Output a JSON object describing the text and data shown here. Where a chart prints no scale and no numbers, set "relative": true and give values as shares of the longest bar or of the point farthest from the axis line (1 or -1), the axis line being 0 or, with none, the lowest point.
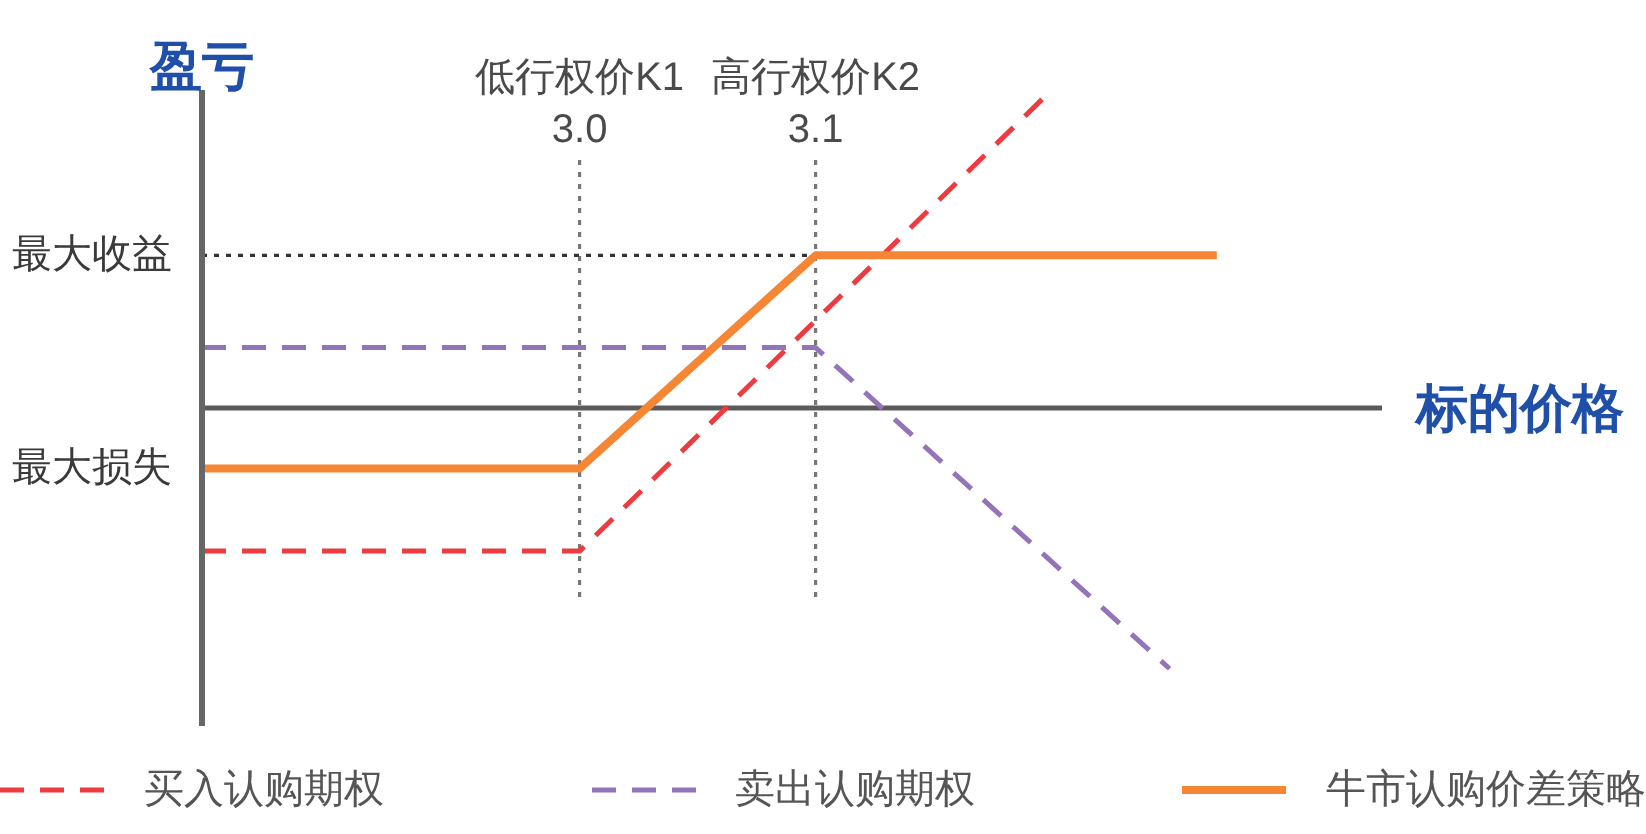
{
  "chart_data": {
    "type": "line",
    "relative": true,
    "xlabel": "标的价格",
    "ylabel": "盈亏",
    "xlim": [
      2.84,
      3.34
    ],
    "xticks": [
      {
        "value": 3,
        "label": "3.0"
      },
      3.1
    ],
    "series": [
      {
        "name": "买入认购期权",
        "color": "#ee3b40",
        "line_style": "dashed",
        "x": [
          2.84,
          3,
          3.2
        ],
        "values": [
          -0.45,
          -0.45,
          1
        ]
      },
      {
        "name": "卖出认购期权",
        "color": "#9474b8",
        "line_style": "dashed",
        "x": [
          2.84,
          3.1,
          3.25
        ],
        "values": [
          0.19,
          0.19,
          -0.82
        ]
      },
      {
        "name": "牛市认购价差策略",
        "color": "#f58634",
        "line_style": "solid",
        "x": [
          2.84,
          3,
          3.1,
          3.27
        ],
        "values": [
          -0.19,
          -0.19,
          0.48,
          0.48
        ]
      }
    ],
    "ref_lines": [
      {
        "axis": "x",
        "value": 3,
        "label": "低行权价K1",
        "color": "#777777",
        "line_style": "dotted"
      },
      {
        "axis": "x",
        "value": 3.1,
        "label": "高行权价K2",
        "color": "#777777",
        "line_style": "dotted"
      },
      {
        "axis": "y",
        "value": 0.48,
        "label": "最大收益",
        "color": "#333333",
        "line_style": "dotted"
      }
    ],
    "annotations": [
      {
        "text": "最大损失",
        "x": 2.84,
        "y": -0.19
      }
    ],
    "legend": "bottom"
  }
}
